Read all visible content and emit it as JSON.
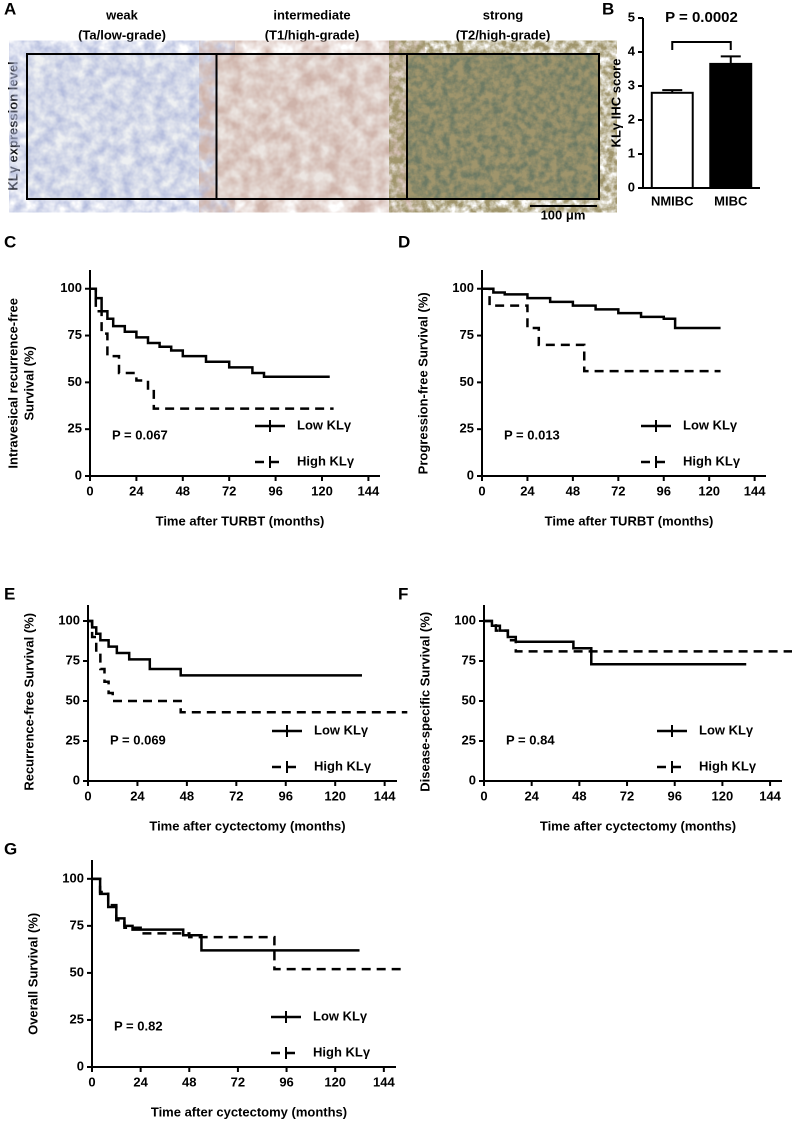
{
  "panel_a": {
    "label": "A",
    "ylabel": "KLγ expression level",
    "scale_bar": "100 μm",
    "columns": [
      {
        "title": "weak",
        "subtitle": "(Ta/low-grade)"
      },
      {
        "title": "intermediate",
        "subtitle": "(T1/high-grade)"
      },
      {
        "title": "strong",
        "subtitle": "(T2/high-grade)"
      }
    ]
  },
  "chart_data": [
    {
      "type": "bar",
      "label": "B",
      "ylabel": "KLγ IHC score",
      "annotation": "P = 0.0002",
      "categories": [
        "NMIBC",
        "MIBC"
      ],
      "values": [
        2.8,
        3.65
      ],
      "errors": [
        0.08,
        0.22
      ],
      "colors": [
        "#ffffff",
        "#000000"
      ],
      "ylim": [
        0,
        5
      ],
      "yticks": [
        0,
        1,
        2,
        3,
        4,
        5
      ]
    },
    {
      "type": "step",
      "label": "C",
      "ylabel": [
        "Intravesical recurrence-free",
        "Survival (%)"
      ],
      "xlabel": "Time after TURBT (months)",
      "annotation": "P = 0.067",
      "xlim": [
        0,
        150
      ],
      "xticks": [
        0,
        24,
        48,
        72,
        96,
        120,
        144
      ],
      "ylim": [
        0,
        110
      ],
      "yticks": [
        0,
        25,
        50,
        75,
        100
      ],
      "series": [
        {
          "name": "Low KLγ",
          "color": "#000000",
          "line_style": "solid",
          "x": [
            0,
            3,
            6,
            9,
            12,
            18,
            24,
            30,
            36,
            42,
            48,
            60,
            72,
            84,
            90,
            124
          ],
          "values": [
            100,
            95,
            88,
            84,
            80,
            77,
            74,
            71,
            69,
            67,
            64,
            61,
            58,
            55,
            53,
            53
          ]
        },
        {
          "name": "High KLγ",
          "color": "#000000",
          "line_style": "dashed",
          "x": [
            0,
            3,
            6,
            9,
            15,
            24,
            30,
            33,
            126
          ],
          "values": [
            100,
            88,
            76,
            64,
            55,
            51,
            46,
            36,
            36
          ]
        }
      ]
    },
    {
      "type": "step",
      "label": "D",
      "ylabel": "Progression-free Survival (%)",
      "xlabel": "Time after TURBT (months)",
      "annotation": "P = 0.013",
      "xlim": [
        0,
        150
      ],
      "xticks": [
        0,
        24,
        48,
        72,
        96,
        120,
        144
      ],
      "ylim": [
        0,
        110
      ],
      "yticks": [
        0,
        25,
        50,
        75,
        100
      ],
      "series": [
        {
          "name": "Low KLγ",
          "color": "#000000",
          "line_style": "solid",
          "x": [
            0,
            6,
            12,
            24,
            36,
            48,
            60,
            72,
            84,
            96,
            102,
            126
          ],
          "values": [
            100,
            98,
            97,
            95,
            93,
            91,
            89,
            87,
            85,
            84,
            79,
            79
          ]
        },
        {
          "name": "High KLγ",
          "color": "#000000",
          "line_style": "dashed",
          "x": [
            0,
            4,
            24,
            30,
            54,
            126
          ],
          "values": [
            100,
            91,
            79,
            70,
            56,
            56
          ]
        }
      ]
    },
    {
      "type": "step",
      "label": "E",
      "ylabel": "Recurrence-free Survival (%)",
      "xlabel": "Time after cyctectomy (months)",
      "annotation": "P = 0.069",
      "xlim": [
        0,
        150
      ],
      "xticks": [
        0,
        24,
        48,
        72,
        96,
        120,
        144
      ],
      "ylim": [
        0,
        110
      ],
      "yticks": [
        0,
        25,
        50,
        75,
        100
      ],
      "series": [
        {
          "name": "Low KLγ",
          "color": "#000000",
          "line_style": "solid",
          "x": [
            0,
            2,
            4,
            6,
            10,
            14,
            20,
            30,
            45,
            133
          ],
          "values": [
            100,
            96,
            92,
            88,
            84,
            80,
            76,
            70,
            66,
            66
          ]
        },
        {
          "name": "High KLγ",
          "color": "#000000",
          "line_style": "dashed",
          "x": [
            0,
            2,
            4,
            6,
            8,
            10,
            12,
            20,
            45,
            155
          ],
          "values": [
            100,
            90,
            80,
            70,
            62,
            55,
            50,
            50,
            43,
            43
          ]
        }
      ]
    },
    {
      "type": "step",
      "label": "F",
      "ylabel": "Disease-specific Survival (%)",
      "xlabel": "Time after cyctectomy (months)",
      "annotation": "P = 0.84",
      "xlim": [
        0,
        150
      ],
      "xticks": [
        0,
        24,
        48,
        72,
        96,
        120,
        144
      ],
      "ylim": [
        0,
        110
      ],
      "yticks": [
        0,
        25,
        50,
        75,
        100
      ],
      "series": [
        {
          "name": "Low KLγ",
          "color": "#000000",
          "line_style": "solid",
          "x": [
            0,
            4,
            8,
            12,
            16,
            30,
            45,
            54,
            132
          ],
          "values": [
            100,
            97,
            94,
            90,
            87,
            87,
            83,
            73,
            73
          ]
        },
        {
          "name": "High KLγ",
          "color": "#000000",
          "line_style": "dashed",
          "x": [
            0,
            6,
            12,
            16,
            158
          ],
          "values": [
            100,
            94,
            88,
            81,
            81
          ]
        }
      ]
    },
    {
      "type": "step",
      "label": "G",
      "ylabel": "Overall Survival (%)",
      "xlabel": "Time after cyctectomy (months)",
      "annotation": "P = 0.82",
      "xlim": [
        0,
        150
      ],
      "xticks": [
        0,
        24,
        48,
        72,
        96,
        120,
        144
      ],
      "ylim": [
        0,
        110
      ],
      "yticks": [
        0,
        25,
        50,
        75,
        100
      ],
      "series": [
        {
          "name": "Low KLγ",
          "color": "#000000",
          "line_style": "solid",
          "x": [
            0,
            4,
            8,
            12,
            16,
            20,
            30,
            45,
            54,
            132
          ],
          "values": [
            100,
            92,
            85,
            79,
            75,
            73,
            73,
            70,
            62,
            62
          ]
        },
        {
          "name": "High KLγ",
          "color": "#000000",
          "line_style": "dashed",
          "x": [
            0,
            4,
            8,
            12,
            16,
            24,
            48,
            66,
            90,
            155
          ],
          "values": [
            100,
            93,
            86,
            78,
            74,
            71,
            69,
            69,
            52,
            52
          ]
        }
      ]
    }
  ]
}
